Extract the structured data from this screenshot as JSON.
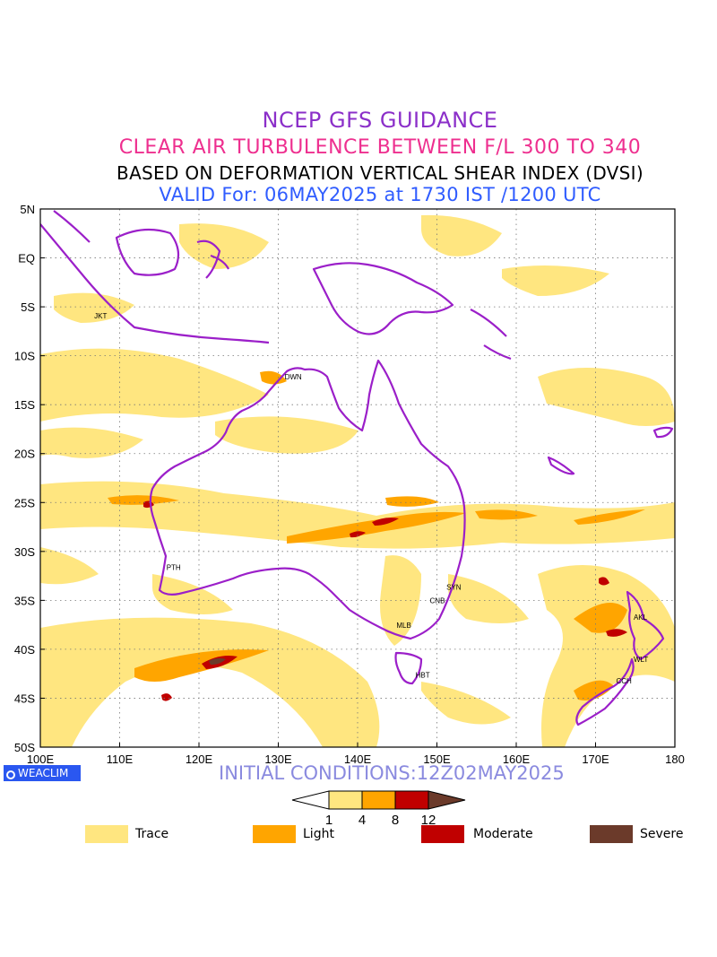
{
  "titles": {
    "line1": "NCEP GFS GUIDANCE",
    "line2": "CLEAR AIR TURBULENCE BETWEEN F/L 300 TO 340",
    "line3": "BASED ON DEFORMATION VERTICAL SHEAR INDEX (DVSI)",
    "line4": "VALID For: 06MAY2025 at 1730 IST /1200 UTC"
  },
  "initial_conditions": "INITIAL CONDITIONS:12Z02MAY2025",
  "logo_text": "WEACLIM",
  "map": {
    "lon_range": [
      100,
      180
    ],
    "lat_range": [
      -50,
      5
    ],
    "lon_ticks": [
      "100E",
      "110E",
      "120E",
      "130E",
      "140E",
      "150E",
      "160E",
      "170E",
      "180"
    ],
    "lat_ticks": [
      "5N",
      "EQ",
      "5S",
      "10S",
      "15S",
      "20S",
      "25S",
      "30S",
      "35S",
      "40S",
      "45S",
      "50S"
    ],
    "stations": [
      {
        "code": "JKT",
        "lon": 106.8,
        "lat": -6.2
      },
      {
        "code": "DWN",
        "lon": 130.8,
        "lat": -12.4
      },
      {
        "code": "PTH",
        "lon": 115.9,
        "lat": -31.9
      },
      {
        "code": "SYN",
        "lon": 151.2,
        "lat": -33.9
      },
      {
        "code": "CNB",
        "lon": 149.1,
        "lat": -35.3
      },
      {
        "code": "MLB",
        "lon": 144.9,
        "lat": -37.8
      },
      {
        "code": "HBT",
        "lon": 147.3,
        "lat": -42.9
      },
      {
        "code": "AKL",
        "lon": 174.8,
        "lat": -37.0
      },
      {
        "code": "WLT",
        "lon": 174.8,
        "lat": -41.3
      },
      {
        "code": "CCH",
        "lon": 172.6,
        "lat": -43.5
      }
    ],
    "colors": {
      "trace": "#ffe680",
      "light": "#ffa500",
      "moderate": "#c00000",
      "severe": "#6b3a2a",
      "coastline": "#9b1fc9"
    }
  },
  "colorbar": {
    "ticks": [
      "1",
      "4",
      "8",
      "12"
    ]
  },
  "legend": [
    {
      "label": "Trace",
      "color": "#ffe680"
    },
    {
      "label": "Light",
      "color": "#ffa500"
    },
    {
      "label": "Moderate",
      "color": "#c00000"
    },
    {
      "label": "Severe",
      "color": "#6b3a2a"
    }
  ]
}
